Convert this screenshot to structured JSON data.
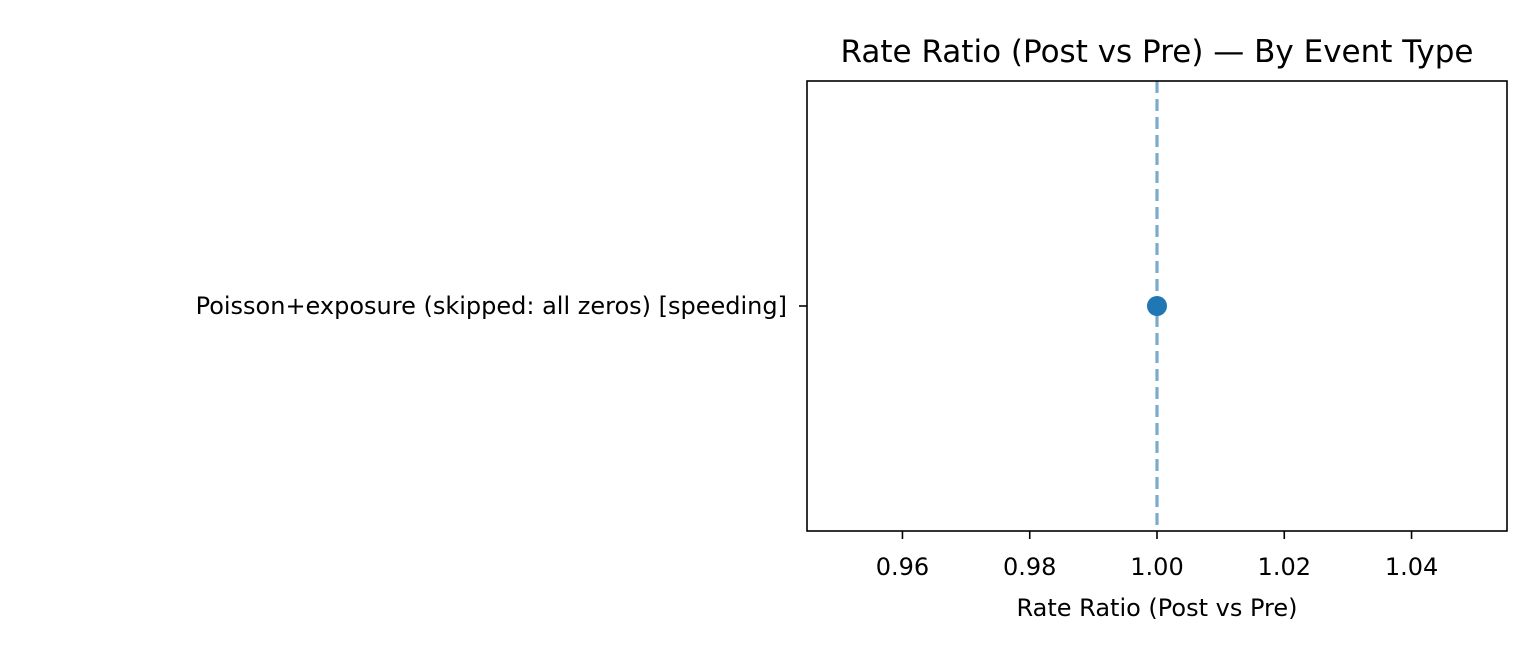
{
  "chart_data": {
    "type": "scatter",
    "title": "Rate Ratio (Post vs Pre) — By Event Type",
    "xlabel": "Rate Ratio (Post vs Pre)",
    "ylabel": "",
    "xlim": [
      0.945,
      1.055
    ],
    "xticks": [
      "0.96",
      "0.98",
      "1.00",
      "1.02",
      "1.04"
    ],
    "xtick_values": [
      0.96,
      0.98,
      1.0,
      1.02,
      1.04
    ],
    "categories": [
      "Poisson+exposure (skipped: all zeros) [speeding]"
    ],
    "points": [
      {
        "category": "Poisson+exposure (skipped: all zeros) [speeding]",
        "x": 1.0
      }
    ],
    "reference_line": {
      "x": 1.0,
      "style": "dashed"
    },
    "grid": false,
    "colors": {
      "point": "#1f77b4",
      "reference_line": "#7aaacc",
      "frame": "#000000"
    }
  }
}
